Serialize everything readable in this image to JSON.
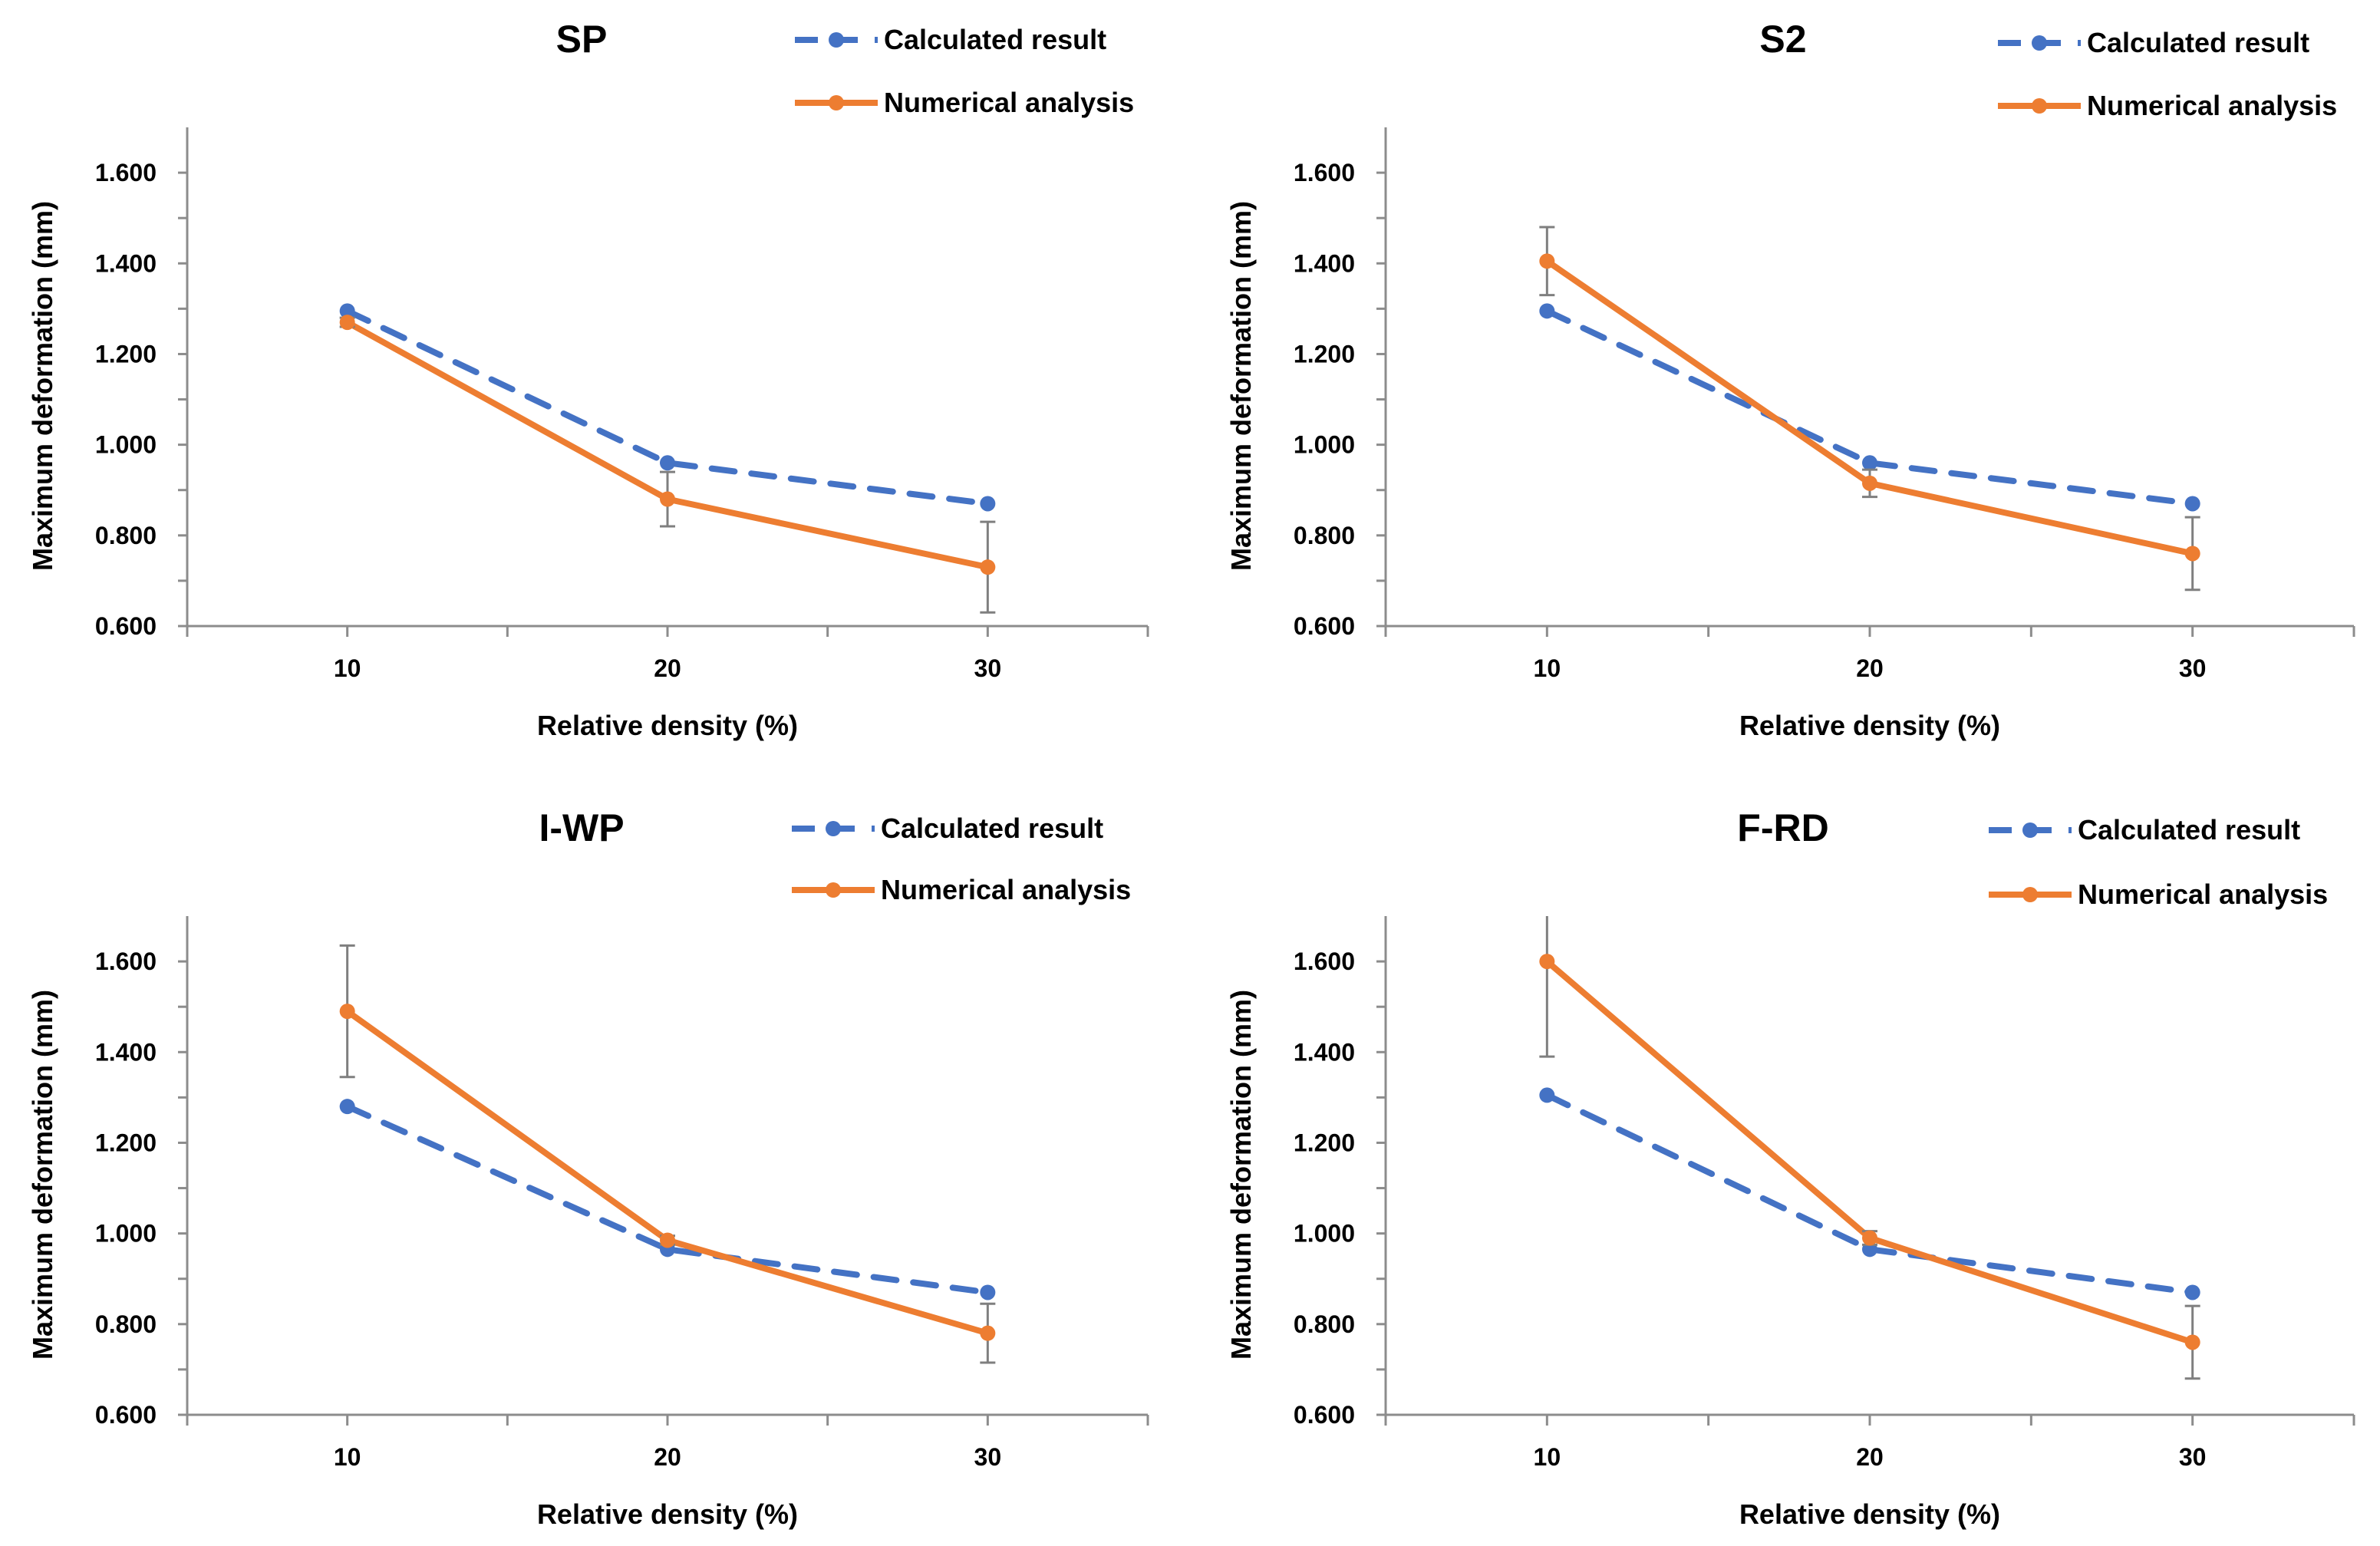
{
  "chart_data": [
    {
      "type": "line",
      "title": "SP",
      "xlabel": "Relative density (%)",
      "ylabel": "Maximum deformation (mm)",
      "categories": [
        "10",
        "20",
        "30"
      ],
      "yticks": [
        "0.600",
        "0.800",
        "1.000",
        "1.200",
        "1.400",
        "1.600"
      ],
      "ylim": [
        0.6,
        1.7
      ],
      "legend_position": "top-right",
      "grid": false,
      "series": [
        {
          "name": "Calculated result",
          "style": "dashed",
          "color": "#4472C4",
          "values": [
            1.295,
            0.96,
            0.87
          ]
        },
        {
          "name": "Numerical analysis",
          "style": "solid",
          "color": "#ED7D31",
          "values": [
            1.27,
            0.88,
            0.73
          ],
          "error": [
            0.01,
            0.06,
            0.1
          ]
        }
      ]
    },
    {
      "type": "line",
      "title": "S2",
      "xlabel": "Relative density (%)",
      "ylabel": "Maximum deformation (mm)",
      "categories": [
        "10",
        "20",
        "30"
      ],
      "yticks": [
        "0.600",
        "0.800",
        "1.000",
        "1.200",
        "1.400",
        "1.600"
      ],
      "ylim": [
        0.6,
        1.7
      ],
      "legend_position": "top-right",
      "grid": false,
      "series": [
        {
          "name": "Calculated result",
          "style": "dashed",
          "color": "#4472C4",
          "values": [
            1.295,
            0.96,
            0.87
          ]
        },
        {
          "name": "Numerical analysis",
          "style": "solid",
          "color": "#ED7D31",
          "values": [
            1.405,
            0.915,
            0.76
          ],
          "error": [
            0.075,
            0.03,
            0.08
          ]
        }
      ]
    },
    {
      "type": "line",
      "title": "I-WP",
      "xlabel": "Relative density (%)",
      "ylabel": "Maximum deformation (mm)",
      "categories": [
        "10",
        "20",
        "30"
      ],
      "yticks": [
        "0.600",
        "0.800",
        "1.000",
        "1.200",
        "1.400",
        "1.600"
      ],
      "ylim": [
        0.6,
        1.7
      ],
      "legend_position": "top-right",
      "grid": false,
      "series": [
        {
          "name": "Calculated result",
          "style": "dashed",
          "color": "#4472C4",
          "values": [
            1.28,
            0.965,
            0.87
          ]
        },
        {
          "name": "Numerical analysis",
          "style": "solid",
          "color": "#ED7D31",
          "values": [
            1.49,
            0.985,
            0.78
          ],
          "error": [
            0.145,
            0.01,
            0.065
          ]
        }
      ]
    },
    {
      "type": "line",
      "title": "F-RD",
      "xlabel": "Relative density (%)",
      "ylabel": "Maximum deformation (mm)",
      "categories": [
        "10",
        "20",
        "30"
      ],
      "yticks": [
        "0.600",
        "0.800",
        "1.000",
        "1.200",
        "1.400",
        "1.600"
      ],
      "ylim": [
        0.6,
        1.7
      ],
      "legend_position": "top-right",
      "grid": false,
      "series": [
        {
          "name": "Calculated result",
          "style": "dashed",
          "color": "#4472C4",
          "values": [
            1.305,
            0.965,
            0.87
          ]
        },
        {
          "name": "Numerical analysis",
          "style": "solid",
          "color": "#ED7D31",
          "values": [
            1.6,
            0.99,
            0.76
          ],
          "error": [
            0.21,
            0.015,
            0.08
          ]
        }
      ]
    }
  ]
}
